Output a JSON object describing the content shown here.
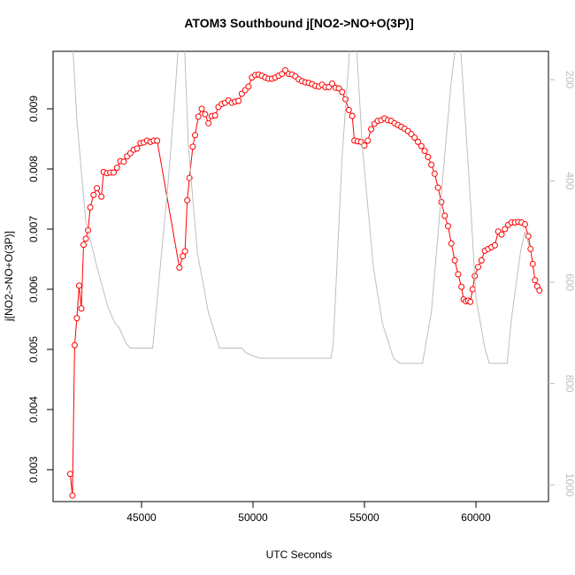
{
  "chart_data": {
    "type": "line",
    "title": "ATOM3 Southbound j[NO2->NO+O(3P)]",
    "xlabel": "UTC Seconds",
    "ylabel": "j[NO2->NO+O(3P)]",
    "xlim": [
      41032,
      63254
    ],
    "xticks": [
      45000,
      50000,
      55000,
      60000
    ],
    "ylim": [
      0.00247,
      0.009956
    ],
    "yticks": [
      0.003,
      0.004,
      0.005,
      0.006,
      0.007,
      0.008,
      0.009
    ],
    "y2lim": [
      1033,
      144
    ],
    "y2ticks": [
      200,
      400,
      600,
      800,
      1000
    ],
    "y2color": "#bebebe",
    "series": [
      {
        "color": "#ff0000",
        "markers": true,
        "x": [
          41800,
          41900,
          42000,
          42100,
          42200,
          42300,
          42400,
          42500,
          42600,
          42700,
          42850,
          43000,
          43200,
          43300,
          43450,
          43600,
          43750,
          43900,
          44050,
          44200,
          44350,
          44500,
          44650,
          44800,
          44950,
          45100,
          45250,
          45400,
          45550,
          45700,
          46700,
          46850,
          46950,
          47050,
          47150,
          47300,
          47400,
          47550,
          47700,
          47850,
          48000,
          48150,
          48300,
          48450,
          48600,
          48750,
          48900,
          49050,
          49200,
          49350,
          49500,
          49650,
          49800,
          49950,
          50100,
          50250,
          50400,
          50550,
          50700,
          50850,
          51000,
          51150,
          51300,
          51450,
          51600,
          51750,
          51900,
          52050,
          52200,
          52350,
          52500,
          52650,
          52800,
          52950,
          53100,
          53250,
          53400,
          53550,
          53700,
          53850,
          54000,
          54150,
          54300,
          54450,
          54550,
          54700,
          54850,
          55000,
          55150,
          55300,
          55450,
          55600,
          55750,
          55900,
          56050,
          56200,
          56350,
          56500,
          56650,
          56800,
          56950,
          57100,
          57250,
          57400,
          57550,
          57700,
          57850,
          58000,
          58150,
          58300,
          58450,
          58600,
          58750,
          58900,
          59050,
          59200,
          59350,
          59450,
          59550,
          59650,
          59750,
          59850,
          59950,
          60100,
          60250,
          60400,
          60550,
          60700,
          60850,
          61000,
          61150,
          61300,
          61450,
          61600,
          61750,
          61900,
          62050,
          62200,
          62350,
          62450,
          62550,
          62650,
          62750,
          62850
        ],
        "values": [
          0.00293,
          0.00257,
          0.00507,
          0.00552,
          0.00606,
          0.00568,
          0.00674,
          0.00684,
          0.00698,
          0.00736,
          0.00757,
          0.00768,
          0.00754,
          0.00795,
          0.00793,
          0.00794,
          0.00794,
          0.00802,
          0.00813,
          0.00812,
          0.00821,
          0.00826,
          0.00832,
          0.00834,
          0.00843,
          0.00844,
          0.00847,
          0.00845,
          0.00847,
          0.00847,
          0.00636,
          0.00655,
          0.00663,
          0.00748,
          0.00785,
          0.00837,
          0.00856,
          0.00887,
          0.009,
          0.00891,
          0.00876,
          0.00888,
          0.00889,
          0.00903,
          0.00908,
          0.0091,
          0.00914,
          0.0091,
          0.00912,
          0.00913,
          0.00925,
          0.00931,
          0.00937,
          0.00952,
          0.00956,
          0.00957,
          0.00955,
          0.00952,
          0.0095,
          0.0095,
          0.00952,
          0.00955,
          0.00958,
          0.00964,
          0.00958,
          0.00957,
          0.00954,
          0.00949,
          0.00946,
          0.00944,
          0.00943,
          0.00941,
          0.00938,
          0.00937,
          0.0094,
          0.00936,
          0.00936,
          0.00942,
          0.00935,
          0.00934,
          0.00928,
          0.00916,
          0.00898,
          0.00888,
          0.00847,
          0.00846,
          0.00845,
          0.00839,
          0.00847,
          0.00866,
          0.00875,
          0.0088,
          0.00881,
          0.00884,
          0.00881,
          0.0088,
          0.00876,
          0.00873,
          0.0087,
          0.00867,
          0.00863,
          0.00858,
          0.00852,
          0.00845,
          0.00838,
          0.0083,
          0.0082,
          0.00807,
          0.00792,
          0.00769,
          0.00745,
          0.00722,
          0.00705,
          0.00676,
          0.00648,
          0.00625,
          0.00604,
          0.00583,
          0.0058,
          0.00581,
          0.00579,
          0.006,
          0.00622,
          0.00637,
          0.00648,
          0.00664,
          0.00667,
          0.0067,
          0.00673,
          0.00696,
          0.00691,
          0.007,
          0.00707,
          0.00711,
          0.00711,
          0.00712,
          0.00711,
          0.00708,
          0.00688,
          0.00667,
          0.00642,
          0.00615,
          0.00605,
          0.00598
        ]
      },
      {
        "color": "#bebebe",
        "axis": "y2",
        "markers": false,
        "x": [
          41900,
          42100,
          42500,
          43000,
          43500,
          43800,
          44000,
          44300,
          44500,
          45500,
          46200,
          46500,
          46700,
          46900,
          47100,
          47500,
          48000,
          48500,
          49000,
          49500,
          49700,
          50300,
          53500,
          53600,
          54000,
          54400,
          54600,
          54900,
          55400,
          55800,
          56300,
          56600,
          57600,
          58000,
          58500,
          58900,
          59100,
          59300,
          59700,
          60000,
          60400,
          60600,
          61400,
          61600,
          62000,
          62200,
          62400
        ],
        "values": [
          120,
          280,
          480,
          570,
          650,
          680,
          690,
          720,
          730,
          730,
          400,
          230,
          100,
          100,
          330,
          540,
          660,
          730,
          730,
          730,
          740,
          750,
          750,
          720,
          350,
          100,
          100,
          330,
          570,
          680,
          750,
          760,
          760,
          660,
          400,
          200,
          130,
          130,
          400,
          630,
          730,
          760,
          760,
          670,
          540,
          500,
          530
        ]
      }
    ]
  }
}
